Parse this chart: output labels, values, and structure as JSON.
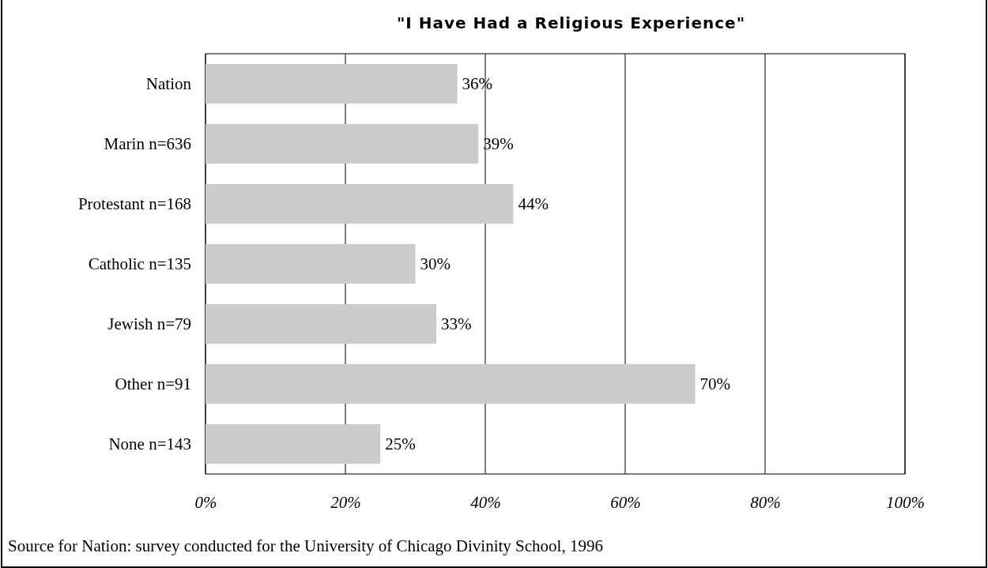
{
  "chart_data": {
    "type": "bar",
    "orientation": "horizontal",
    "title": "\"I Have Had a Religious Experience\"",
    "categories": [
      "Nation",
      "Marin n=636",
      "Protestant n=168",
      "Catholic n=135",
      "Jewish n=79",
      "Other n=91",
      "None n=143"
    ],
    "values": [
      36,
      39,
      44,
      30,
      33,
      70,
      25
    ],
    "value_labels": [
      "36%",
      "39%",
      "44%",
      "30%",
      "33%",
      "70%",
      "25%"
    ],
    "color": "#cccccc",
    "xlim": [
      0,
      100
    ],
    "xticks": [
      {
        "value": 0,
        "label": "0%"
      },
      {
        "value": 20,
        "label": "20%"
      },
      {
        "value": 40,
        "label": "40%"
      },
      {
        "value": 60,
        "label": "60%"
      },
      {
        "value": 80,
        "label": "80%"
      },
      {
        "value": 100,
        "label": "100%"
      }
    ],
    "grid": "x",
    "annotations": [
      "Source for Nation: survey conducted for the University of Chicago Divinity School, 1996"
    ]
  }
}
